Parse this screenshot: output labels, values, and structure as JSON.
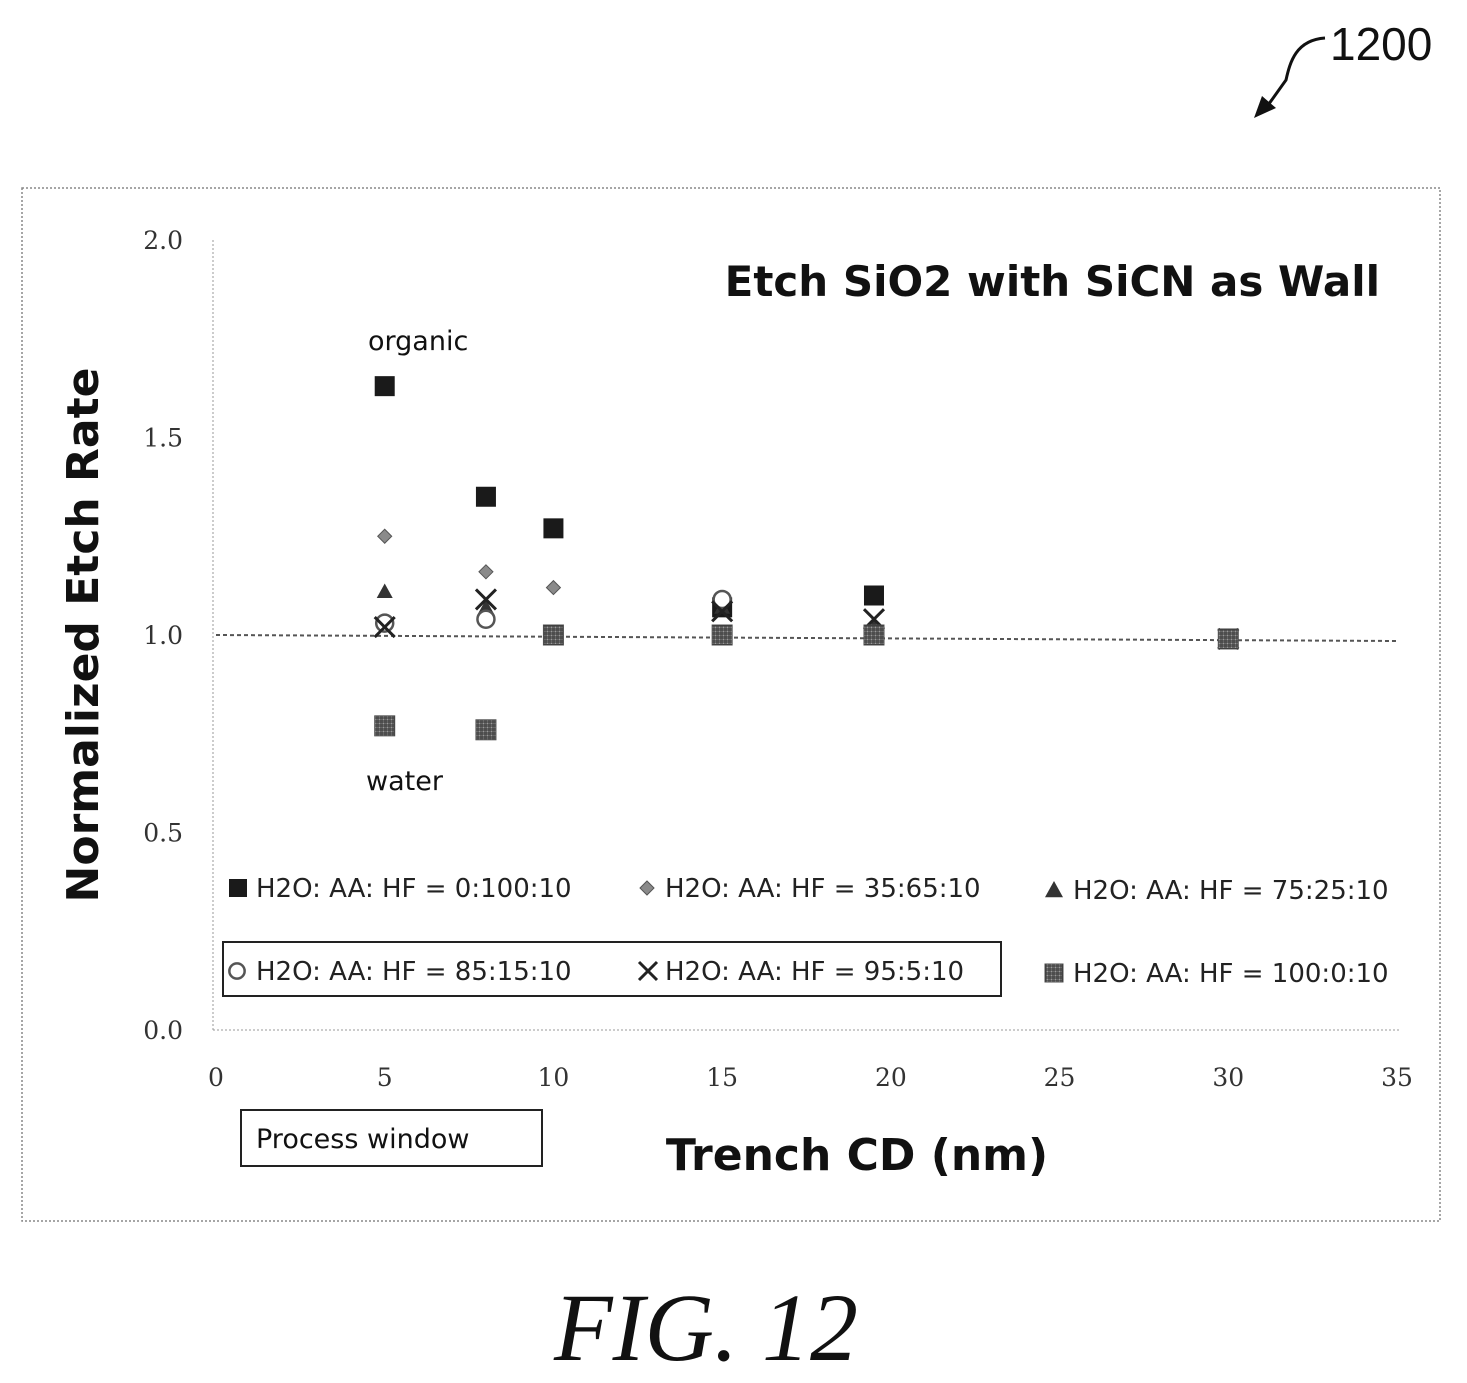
{
  "reference_number": "1200",
  "figure_caption": "FIG. 12",
  "process_window_label": "Process window",
  "colors": {
    "solid": "#1a1a1a",
    "diamond": "#8a8a8a",
    "triangle": "#333333",
    "circle": "#555555",
    "cross": "#222222",
    "hatched": "#4d4d4d",
    "reference_line": "#555555"
  },
  "chart_data": {
    "type": "scatter",
    "title": "Etch SiO2 with SiCN as Wall",
    "xlabel": "Trench CD (nm)",
    "ylabel": "Normalized Etch Rate",
    "xlim": [
      0,
      35
    ],
    "ylim": [
      0,
      2
    ],
    "x_ticks": [
      "0",
      "5",
      "10",
      "15",
      "20",
      "25",
      "30",
      "35"
    ],
    "y_ticks": [
      "0.0",
      "0.5",
      "1.0",
      "1.5",
      "2.0"
    ],
    "grid": false,
    "reference_line_y": 1.0,
    "annotations": [
      {
        "text": "organic",
        "x": 5,
        "y": 1.73
      },
      {
        "text": "water",
        "x": 5,
        "y": 0.6
      }
    ],
    "series": [
      {
        "name": "H2O: AA: HF = 0:100:10",
        "marker": "square",
        "points": [
          [
            5,
            1.63
          ],
          [
            8,
            1.35
          ],
          [
            10,
            1.27
          ],
          [
            15,
            1.07
          ],
          [
            19.5,
            1.1
          ]
        ]
      },
      {
        "name": "H2O: AA: HF = 35:65:10",
        "marker": "diamond",
        "points": [
          [
            5,
            1.25
          ],
          [
            8,
            1.16
          ],
          [
            10,
            1.12
          ],
          [
            15,
            1.08
          ],
          [
            30,
            0.99
          ]
        ]
      },
      {
        "name": "H2O: AA: HF = 75:25:10",
        "marker": "triangle",
        "points": [
          [
            5,
            1.11
          ],
          [
            8,
            1.07
          ],
          [
            15,
            1.07
          ],
          [
            19.5,
            1.02
          ],
          [
            30,
            0.99
          ]
        ]
      },
      {
        "name": "H2O: AA: HF = 85:15:10",
        "marker": "circle",
        "points": [
          [
            5,
            1.03
          ],
          [
            8,
            1.04
          ],
          [
            15,
            1.09
          ],
          [
            19.5,
            1.0
          ],
          [
            30,
            0.99
          ]
        ]
      },
      {
        "name": "H2O: AA: HF = 95:5:10",
        "marker": "cross",
        "points": [
          [
            5,
            1.02
          ],
          [
            8,
            1.09
          ],
          [
            15,
            1.06
          ],
          [
            19.5,
            1.04
          ],
          [
            30,
            0.99
          ]
        ]
      },
      {
        "name": "H2O: AA: HF = 100:0:10",
        "marker": "hatched-square",
        "points": [
          [
            5,
            0.77
          ],
          [
            8,
            0.76
          ],
          [
            10,
            1.0
          ],
          [
            15,
            1.0
          ],
          [
            19.5,
            1.0
          ],
          [
            30,
            0.99
          ]
        ]
      }
    ]
  }
}
